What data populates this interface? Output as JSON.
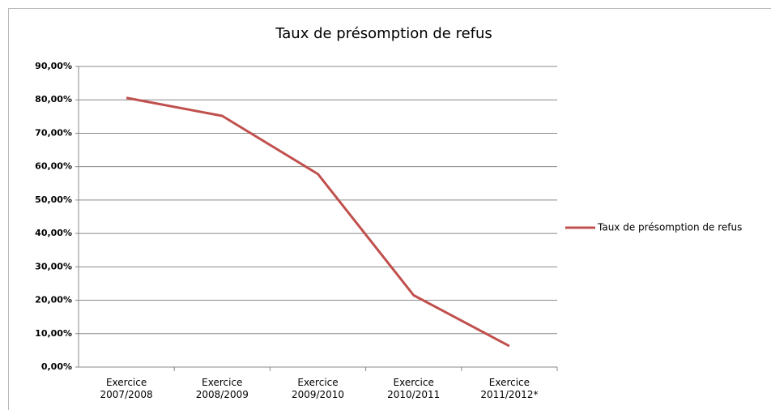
{
  "chart_data": {
    "type": "line",
    "title": "Taux de présomption de refus",
    "categories": [
      "Exercice 2007/2008",
      "Exercice 2008/2009",
      "Exercice 2009/2010",
      "Exercice 2010/2011",
      "Exercice 2011/2012*"
    ],
    "series": [
      {
        "name": "Taux de présomption de refus",
        "color": "#c0504d",
        "values": [
          80.6,
          75.2,
          57.8,
          21.5,
          6.3
        ]
      }
    ],
    "ylim": [
      0,
      90
    ],
    "yticks": [
      {
        "value": 0,
        "label": "0,00%"
      },
      {
        "value": 10,
        "label": "10,00%"
      },
      {
        "value": 20,
        "label": "20,00%"
      },
      {
        "value": 30,
        "label": "30,00%"
      },
      {
        "value": 40,
        "label": "40,00%"
      },
      {
        "value": 50,
        "label": "50,00%"
      },
      {
        "value": 60,
        "label": "60,00%"
      },
      {
        "value": 70,
        "label": "70,00%"
      },
      {
        "value": 80,
        "label": "80,00%"
      },
      {
        "value": 90,
        "label": "90,00%"
      }
    ],
    "grid": true,
    "legend": "right"
  }
}
